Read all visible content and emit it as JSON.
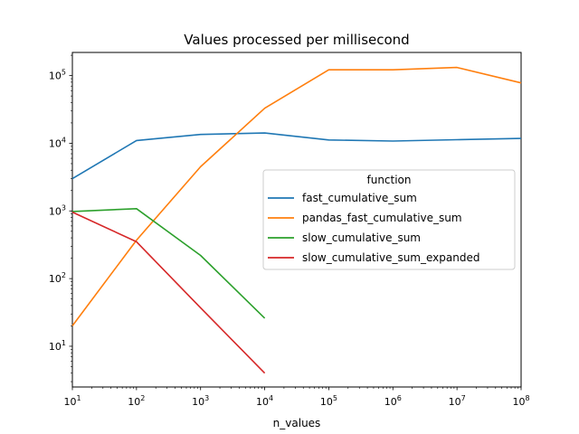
{
  "chart_data": {
    "type": "line",
    "title": "Values processed per millisecond",
    "xlabel": "n_values",
    "ylabel": "",
    "xscale": "log",
    "yscale": "log",
    "xlim": [
      10,
      100000000
    ],
    "ylim": [
      2.5,
      220000
    ],
    "grid": false,
    "legend": {
      "title": "function",
      "placement": "center-right"
    },
    "x_ticks": [
      10,
      100,
      1000,
      10000,
      100000,
      1000000,
      10000000,
      100000000
    ],
    "x_tick_labels": [
      {
        "base": "10",
        "exp": "1"
      },
      {
        "base": "10",
        "exp": "2"
      },
      {
        "base": "10",
        "exp": "3"
      },
      {
        "base": "10",
        "exp": "4"
      },
      {
        "base": "10",
        "exp": "5"
      },
      {
        "base": "10",
        "exp": "6"
      },
      {
        "base": "10",
        "exp": "7"
      },
      {
        "base": "10",
        "exp": "8"
      }
    ],
    "y_ticks": [
      10,
      100,
      1000,
      10000,
      100000
    ],
    "y_tick_labels": [
      {
        "base": "10",
        "exp": "1"
      },
      {
        "base": "10",
        "exp": "2"
      },
      {
        "base": "10",
        "exp": "3"
      },
      {
        "base": "10",
        "exp": "4"
      },
      {
        "base": "10",
        "exp": "5"
      }
    ],
    "series": [
      {
        "name": "fast_cumulative_sum",
        "color": "#1f77b4",
        "x": [
          10,
          100,
          1000,
          10000,
          100000,
          1000000,
          10000000,
          100000000
        ],
        "y": [
          3000,
          11000,
          13500,
          14200,
          11200,
          10800,
          11300,
          11800
        ]
      },
      {
        "name": "pandas_fast_cumulative_sum",
        "color": "#ff7f0e",
        "x": [
          10,
          100,
          1000,
          10000,
          100000,
          1000000,
          10000000,
          100000000
        ],
        "y": [
          20,
          370,
          4500,
          33000,
          122000,
          122000,
          132000,
          78000
        ]
      },
      {
        "name": "slow_cumulative_sum",
        "color": "#2ca02c",
        "x": [
          10,
          100,
          1000,
          10000
        ],
        "y": [
          980,
          1080,
          220,
          26
        ]
      },
      {
        "name": "slow_cumulative_sum_expanded",
        "color": "#d62728",
        "x": [
          10,
          100,
          1000,
          10000
        ],
        "y": [
          960,
          350,
          37,
          4
        ]
      }
    ]
  }
}
